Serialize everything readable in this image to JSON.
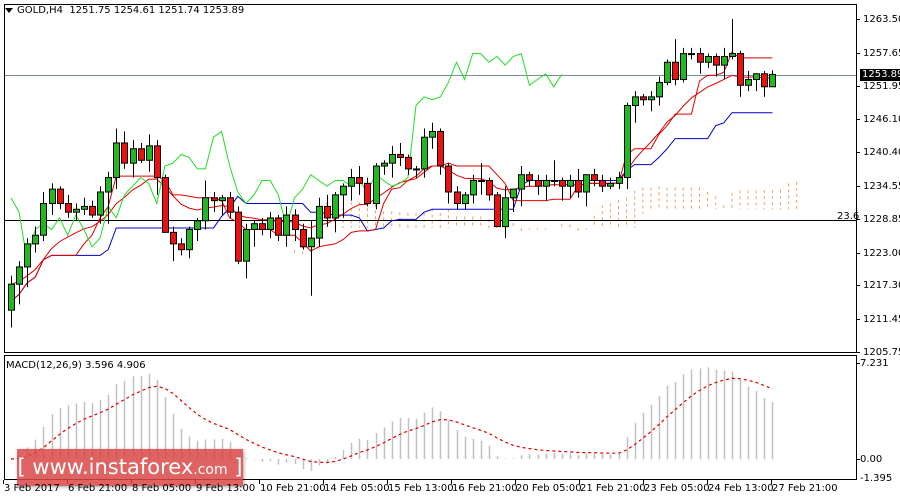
{
  "header": {
    "symbol": "GOLD,H4",
    "ohlc": "1251.75 1254.61 1251.74 1253.89"
  },
  "price_axis": {
    "ticks": [
      "1263.50",
      "1257.65",
      "1251.95",
      "1246.10",
      "1240.40",
      "1234.55",
      "1228.85",
      "1223.00",
      "1217.30",
      "1211.45",
      "1205.75"
    ],
    "current_price": "1253.89"
  },
  "fib_label": "23.6",
  "macd": {
    "label": "MACD(12,26,9) 3.596 4.906",
    "ticks": [
      "7.231",
      "0.00",
      "-1.395"
    ]
  },
  "time_axis": [
    "3 Feb 2017",
    "6 Feb 21:00",
    "8 Feb 05:00",
    "9 Feb 13:00",
    "10 Feb 21:00",
    "14 Feb 05:00",
    "15 Feb 13:00",
    "16 Feb 21:00",
    "20 Feb 05:00",
    "21 Feb 21:00",
    "23 Feb 05:00",
    "24 Feb 13:00",
    "27 Feb 21:00"
  ],
  "watermark": {
    "open": "[",
    "main": " www.instaforex",
    "com": ".com",
    "close": " ]"
  },
  "colors": {
    "bull": "#22b822",
    "bear": "#ee1111",
    "tenkan": "#e00000",
    "kijun": "#0000cc",
    "chikou": "#22dd22",
    "cloud": "#f0a060",
    "macd_hist": "#c0c0c0",
    "macd_signal": "#dd0000"
  },
  "chart_data": {
    "type": "candlestick",
    "title": "GOLD,H4",
    "subtitle": "O 1251.75 H 1254.61 L 1251.74 C 1253.89",
    "xlabel": "",
    "ylabel": "",
    "ylim": [
      1205.75,
      1263.5
    ],
    "categories": [
      "3 Feb 2017",
      "6 Feb 21:00",
      "8 Feb 05:00",
      "9 Feb 13:00",
      "10 Feb 21:00",
      "14 Feb 05:00",
      "15 Feb 13:00",
      "16 Feb 21:00",
      "20 Feb 05:00",
      "21 Feb 21:00",
      "23 Feb 05:00",
      "24 Feb 13:00",
      "27 Feb 21:00"
    ],
    "candles": [
      [
        1213.0,
        1219.0,
        1210.0,
        1217.5
      ],
      [
        1217.5,
        1221.5,
        1214.0,
        1220.5
      ],
      [
        1220.5,
        1225.5,
        1217.0,
        1224.5
      ],
      [
        1224.5,
        1227.5,
        1223.0,
        1226.0
      ],
      [
        1226.0,
        1233.5,
        1225.0,
        1231.5
      ],
      [
        1231.5,
        1235.0,
        1229.5,
        1234.0
      ],
      [
        1234.0,
        1234.5,
        1230.5,
        1231.5
      ],
      [
        1231.5,
        1233.0,
        1229.0,
        1230.0
      ],
      [
        1230.0,
        1231.5,
        1228.5,
        1230.5
      ],
      [
        1230.5,
        1232.5,
        1229.5,
        1231.0
      ],
      [
        1231.0,
        1232.0,
        1229.0,
        1229.5
      ],
      [
        1229.5,
        1234.5,
        1228.0,
        1233.5
      ],
      [
        1233.5,
        1237.0,
        1228.0,
        1236.0
      ],
      [
        1236.0,
        1244.5,
        1234.0,
        1242.0
      ],
      [
        1242.0,
        1244.0,
        1237.5,
        1238.5
      ],
      [
        1238.5,
        1242.5,
        1236.0,
        1241.0
      ],
      [
        1241.0,
        1242.0,
        1238.5,
        1239.0
      ],
      [
        1239.0,
        1243.5,
        1237.0,
        1241.5
      ],
      [
        1241.5,
        1242.5,
        1233.0,
        1236.0
      ],
      [
        1236.0,
        1236.5,
        1226.5,
        1226.5
      ],
      [
        1226.5,
        1227.5,
        1221.5,
        1224.5
      ],
      [
        1224.5,
        1225.5,
        1222.5,
        1223.5
      ],
      [
        1223.5,
        1227.5,
        1222.0,
        1227.0
      ],
      [
        1227.0,
        1229.0,
        1225.0,
        1228.5
      ],
      [
        1228.5,
        1235.5,
        1227.0,
        1232.5
      ],
      [
        1232.5,
        1233.5,
        1230.0,
        1232.0
      ],
      [
        1232.0,
        1233.0,
        1229.5,
        1232.5
      ],
      [
        1232.5,
        1233.5,
        1229.0,
        1230.0
      ],
      [
        1230.0,
        1231.0,
        1221.0,
        1221.5
      ],
      [
        1221.5,
        1228.0,
        1218.5,
        1227.0
      ],
      [
        1227.0,
        1228.5,
        1224.0,
        1228.0
      ],
      [
        1228.0,
        1229.0,
        1226.0,
        1227.0
      ],
      [
        1227.0,
        1230.0,
        1225.5,
        1229.0
      ],
      [
        1229.0,
        1229.5,
        1225.0,
        1226.0
      ],
      [
        1226.0,
        1231.0,
        1224.0,
        1229.5
      ],
      [
        1229.5,
        1230.5,
        1225.0,
        1227.0
      ],
      [
        1227.0,
        1228.0,
        1223.5,
        1224.0
      ],
      [
        1224.0,
        1228.5,
        1215.5,
        1225.5
      ],
      [
        1225.5,
        1232.5,
        1224.0,
        1231.0
      ],
      [
        1231.0,
        1233.0,
        1227.5,
        1229.0
      ],
      [
        1229.0,
        1233.5,
        1226.5,
        1233.0
      ],
      [
        1233.0,
        1235.0,
        1229.0,
        1234.5
      ],
      [
        1234.5,
        1237.5,
        1232.0,
        1236.0
      ],
      [
        1236.0,
        1238.0,
        1233.0,
        1235.0
      ],
      [
        1235.0,
        1236.0,
        1231.0,
        1231.5
      ],
      [
        1231.5,
        1238.5,
        1230.5,
        1238.0
      ],
      [
        1238.0,
        1239.0,
        1236.5,
        1238.5
      ],
      [
        1238.5,
        1241.5,
        1236.0,
        1240.0
      ],
      [
        1240.0,
        1242.0,
        1238.0,
        1239.5
      ],
      [
        1239.5,
        1240.0,
        1236.5,
        1237.5
      ],
      [
        1237.5,
        1238.0,
        1236.0,
        1237.5
      ],
      [
        1237.5,
        1244.5,
        1236.0,
        1243.0
      ],
      [
        1243.0,
        1245.5,
        1241.0,
        1244.0
      ],
      [
        1244.0,
        1244.5,
        1236.5,
        1238.0
      ],
      [
        1238.0,
        1238.5,
        1231.5,
        1233.5
      ],
      [
        1233.5,
        1234.5,
        1230.5,
        1231.5
      ],
      [
        1231.5,
        1233.5,
        1230.5,
        1233.0
      ],
      [
        1233.0,
        1236.5,
        1231.5,
        1235.5
      ],
      [
        1235.5,
        1238.5,
        1233.0,
        1235.5
      ],
      [
        1235.5,
        1236.0,
        1232.0,
        1233.0
      ],
      [
        1233.0,
        1233.5,
        1227.5,
        1227.5
      ],
      [
        1227.5,
        1234.5,
        1225.5,
        1232.5
      ],
      [
        1232.5,
        1234.0,
        1230.0,
        1234.0
      ],
      [
        1234.0,
        1238.0,
        1231.0,
        1236.5
      ],
      [
        1236.5,
        1237.0,
        1234.5,
        1235.5
      ],
      [
        1235.5,
        1236.5,
        1233.0,
        1234.5
      ],
      [
        1234.5,
        1236.5,
        1232.0,
        1235.5
      ],
      [
        1235.5,
        1239.0,
        1234.5,
        1235.5
      ],
      [
        1235.5,
        1236.0,
        1232.0,
        1234.5
      ],
      [
        1234.5,
        1236.5,
        1232.5,
        1235.5
      ],
      [
        1235.5,
        1237.5,
        1232.5,
        1233.5
      ],
      [
        1233.5,
        1235.5,
        1231.0,
        1236.5
      ],
      [
        1236.5,
        1237.5,
        1234.5,
        1235.5
      ],
      [
        1235.5,
        1236.5,
        1233.5,
        1234.5
      ],
      [
        1234.5,
        1236.0,
        1234.0,
        1235.0
      ],
      [
        1235.0,
        1237.0,
        1234.0,
        1236.0
      ],
      [
        1236.0,
        1249.0,
        1234.0,
        1248.5
      ],
      [
        1248.5,
        1251.0,
        1245.5,
        1250.0
      ],
      [
        1250.0,
        1250.5,
        1248.5,
        1249.5
      ],
      [
        1249.5,
        1251.0,
        1247.5,
        1250.0
      ],
      [
        1250.0,
        1253.5,
        1248.5,
        1252.5
      ],
      [
        1252.5,
        1256.5,
        1252.0,
        1256.0
      ],
      [
        1256.0,
        1260.0,
        1252.0,
        1253.0
      ],
      [
        1253.0,
        1258.5,
        1252.5,
        1257.5
      ],
      [
        1257.5,
        1258.5,
        1256.5,
        1257.5
      ],
      [
        1257.5,
        1258.5,
        1254.0,
        1256.0
      ],
      [
        1256.0,
        1257.5,
        1255.0,
        1257.0
      ],
      [
        1257.0,
        1257.5,
        1253.5,
        1255.5
      ],
      [
        1255.5,
        1258.5,
        1253.0,
        1257.0
      ],
      [
        1257.0,
        1263.5,
        1256.5,
        1257.5
      ],
      [
        1257.5,
        1258.0,
        1250.0,
        1252.0
      ],
      [
        1252.0,
        1254.5,
        1251.0,
        1253.0
      ],
      [
        1253.0,
        1254.0,
        1251.0,
        1254.0
      ],
      [
        1254.0,
        1254.5,
        1250.0,
        1251.75
      ],
      [
        1251.75,
        1254.61,
        1251.74,
        1253.89
      ]
    ],
    "indicators": {
      "ichimoku_tenkan": "red solid line",
      "ichimoku_kijun": "blue solid line",
      "ichimoku_chikou": "green line",
      "ichimoku_cloud": "orange dashed hatched cloud",
      "fibonacci_23_6": 1228.85,
      "current_price_line": 1253.89
    },
    "macd": {
      "params": [
        12,
        26,
        9
      ],
      "main": 3.596,
      "signal": 4.906,
      "ylim": [
        -1.395,
        7.231
      ]
    }
  }
}
